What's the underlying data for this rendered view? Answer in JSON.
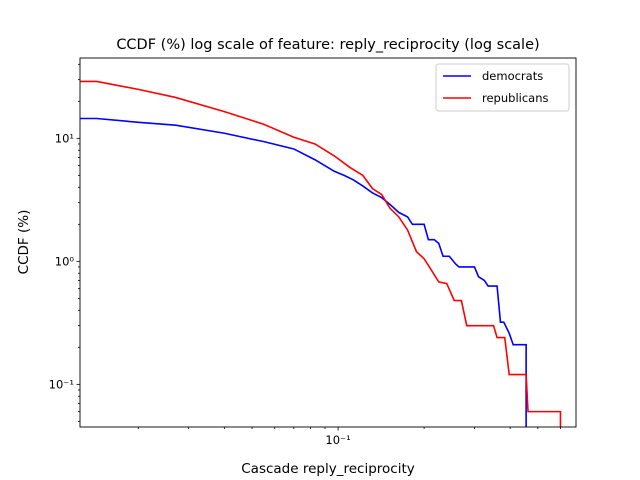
{
  "chart_data": {
    "type": "line",
    "title": "CCDF (%) log scale of feature: reply_reciprocity (log scale)",
    "xlabel": "Cascade reply_reciprocity",
    "ylabel": "CCDF (%)",
    "xscale": "log",
    "yscale": "log",
    "xlim": [
      0.0125,
      0.68
    ],
    "ylim": [
      0.045,
      45
    ],
    "x_ticks": [
      {
        "value": 0.1,
        "label": "10⁻¹"
      }
    ],
    "y_ticks": [
      {
        "value": 0.1,
        "label": "10⁻¹"
      },
      {
        "value": 1,
        "label": "10⁰"
      },
      {
        "value": 10,
        "label": "10¹"
      }
    ],
    "legend": {
      "placement": "top-right"
    },
    "grid": false,
    "series": [
      {
        "name": "democrats",
        "color": "#0000ff",
        "points": [
          [
            0.0125,
            14.5
          ],
          [
            0.0143,
            14.5
          ],
          [
            0.02,
            13.5
          ],
          [
            0.027,
            12.8
          ],
          [
            0.04,
            11.0
          ],
          [
            0.055,
            9.4
          ],
          [
            0.07,
            8.2
          ],
          [
            0.083,
            6.7
          ],
          [
            0.097,
            5.4
          ],
          [
            0.105,
            5.0
          ],
          [
            0.113,
            4.6
          ],
          [
            0.122,
            4.1
          ],
          [
            0.132,
            3.6
          ],
          [
            0.142,
            3.3
          ],
          [
            0.152,
            2.9
          ],
          [
            0.163,
            2.5
          ],
          [
            0.175,
            2.3
          ],
          [
            0.182,
            2.0
          ],
          [
            0.2,
            2.0
          ],
          [
            0.207,
            1.5
          ],
          [
            0.217,
            1.5
          ],
          [
            0.225,
            1.4
          ],
          [
            0.233,
            1.1
          ],
          [
            0.245,
            1.1
          ],
          [
            0.258,
            0.95
          ],
          [
            0.265,
            0.9
          ],
          [
            0.3,
            0.9
          ],
          [
            0.31,
            0.75
          ],
          [
            0.325,
            0.7
          ],
          [
            0.335,
            0.63
          ],
          [
            0.36,
            0.63
          ],
          [
            0.37,
            0.32
          ],
          [
            0.38,
            0.32
          ],
          [
            0.397,
            0.26
          ],
          [
            0.41,
            0.21
          ],
          [
            0.455,
            0.21
          ],
          [
            0.455,
            0.045
          ]
        ]
      },
      {
        "name": "republicans",
        "color": "#ff0000",
        "points": [
          [
            0.0125,
            29.0
          ],
          [
            0.0143,
            29.0
          ],
          [
            0.02,
            25.0
          ],
          [
            0.027,
            21.5
          ],
          [
            0.04,
            16.5
          ],
          [
            0.055,
            13.0
          ],
          [
            0.07,
            10.2
          ],
          [
            0.083,
            9.0
          ],
          [
            0.097,
            7.2
          ],
          [
            0.11,
            5.8
          ],
          [
            0.122,
            5.0
          ],
          [
            0.132,
            3.9
          ],
          [
            0.142,
            3.5
          ],
          [
            0.152,
            2.7
          ],
          [
            0.163,
            2.3
          ],
          [
            0.175,
            1.8
          ],
          [
            0.188,
            1.2
          ],
          [
            0.2,
            1.05
          ],
          [
            0.212,
            0.85
          ],
          [
            0.225,
            0.68
          ],
          [
            0.24,
            0.66
          ],
          [
            0.255,
            0.48
          ],
          [
            0.27,
            0.48
          ],
          [
            0.282,
            0.3
          ],
          [
            0.35,
            0.3
          ],
          [
            0.36,
            0.24
          ],
          [
            0.383,
            0.24
          ],
          [
            0.397,
            0.12
          ],
          [
            0.455,
            0.12
          ],
          [
            0.462,
            0.06
          ],
          [
            0.6,
            0.06
          ],
          [
            0.6,
            0.045
          ]
        ]
      }
    ]
  }
}
